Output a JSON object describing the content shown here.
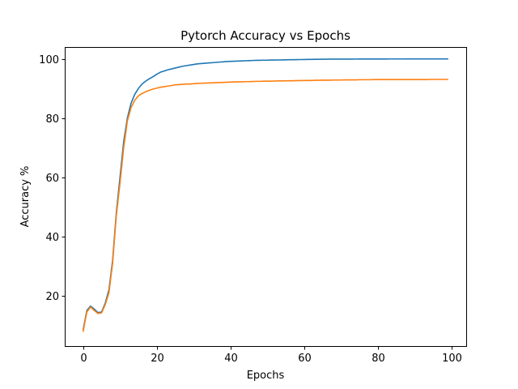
{
  "chart_data": {
    "type": "line",
    "title": "Pytorch Accuracy vs Epochs",
    "xlabel": "Epochs",
    "ylabel": "Accuracy %",
    "xlim": [
      -5,
      104
    ],
    "ylim": [
      3,
      104
    ],
    "xticks": [
      0,
      20,
      40,
      60,
      80,
      100
    ],
    "yticks": [
      20,
      40,
      60,
      80,
      100
    ],
    "grid": false,
    "x": [
      0,
      1,
      2,
      3,
      4,
      5,
      6,
      7,
      8,
      9,
      10,
      11,
      12,
      13,
      14,
      15,
      16,
      17,
      18,
      19,
      20,
      21,
      22,
      23,
      24,
      25,
      26,
      27,
      28,
      29,
      30,
      31,
      32,
      33,
      34,
      35,
      36,
      37,
      38,
      39,
      40,
      41,
      42,
      43,
      44,
      45,
      46,
      47,
      48,
      49,
      50,
      51,
      52,
      53,
      54,
      55,
      56,
      57,
      58,
      59,
      60,
      61,
      62,
      63,
      64,
      65,
      66,
      67,
      68,
      69,
      70,
      71,
      72,
      73,
      74,
      75,
      76,
      77,
      78,
      79,
      80,
      81,
      82,
      83,
      84,
      85,
      86,
      87,
      88,
      89,
      90,
      91,
      92,
      93,
      94,
      95,
      96,
      97,
      98,
      99
    ],
    "series": [
      {
        "color": "#1f77b4",
        "values": [
          8.5,
          15,
          16.5,
          15.5,
          14.3,
          14.5,
          17.5,
          22,
          32,
          48,
          60,
          72,
          80,
          85,
          88,
          90,
          91.5,
          92.5,
          93.3,
          94,
          94.8,
          95.5,
          95.9,
          96.3,
          96.6,
          96.9,
          97.2,
          97.5,
          97.7,
          97.9,
          98.1,
          98.3,
          98.4,
          98.5,
          98.6,
          98.7,
          98.8,
          98.9,
          99.0,
          99.1,
          99.15,
          99.2,
          99.25,
          99.3,
          99.35,
          99.4,
          99.45,
          99.5,
          99.5,
          99.55,
          99.55,
          99.6,
          99.6,
          99.62,
          99.65,
          99.68,
          99.7,
          99.72,
          99.74,
          99.76,
          99.78,
          99.8,
          99.82,
          99.84,
          99.85,
          99.87,
          99.88,
          99.9,
          99.9,
          99.9,
          99.9,
          99.9,
          99.92,
          99.92,
          99.93,
          99.94,
          99.94,
          99.95,
          99.95,
          99.95,
          99.95,
          99.95,
          99.95,
          99.96,
          99.96,
          99.96,
          99.96,
          99.96,
          99.97,
          99.97,
          99.97,
          99.97,
          99.97,
          99.97,
          99.98,
          99.98,
          99.98,
          99.98,
          99.98,
          99.98
        ]
      },
      {
        "color": "#ff7f0e",
        "values": [
          8,
          14.5,
          16.2,
          15,
          14,
          14.2,
          17,
          21,
          31,
          47,
          58,
          70,
          79,
          83.5,
          86,
          87.5,
          88.3,
          88.9,
          89.4,
          89.8,
          90.1,
          90.4,
          90.6,
          90.8,
          91.0,
          91.2,
          91.3,
          91.4,
          91.5,
          91.5,
          91.6,
          91.7,
          91.75,
          91.8,
          91.85,
          91.9,
          91.95,
          92.0,
          92.05,
          92.1,
          92.15,
          92.2,
          92.2,
          92.25,
          92.3,
          92.3,
          92.35,
          92.4,
          92.4,
          92.45,
          92.5,
          92.45,
          92.5,
          92.55,
          92.55,
          92.6,
          92.6,
          92.6,
          92.65,
          92.65,
          92.7,
          92.7,
          92.7,
          92.75,
          92.75,
          92.8,
          92.8,
          92.8,
          92.85,
          92.85,
          92.85,
          92.9,
          92.9,
          92.9,
          92.9,
          92.95,
          92.95,
          92.95,
          92.95,
          93.0,
          93.0,
          93.0,
          93.0,
          93.0,
          93.0,
          93.0,
          93.0,
          93.0,
          93.0,
          93.0,
          93.0,
          93.0,
          93.0,
          93.0,
          93.05,
          93.05,
          93.05,
          93.05,
          93.05,
          93.05
        ]
      }
    ]
  }
}
